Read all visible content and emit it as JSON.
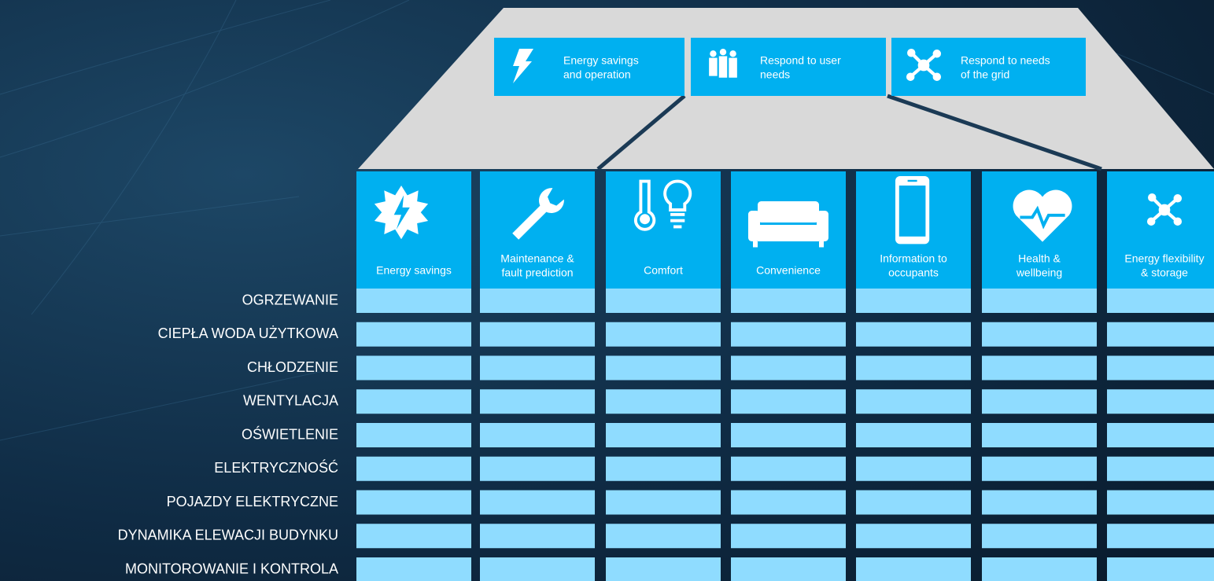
{
  "groups": [
    {
      "label": [
        "Energy savings",
        "and operation"
      ]
    },
    {
      "label": [
        "Respond to user",
        "needs"
      ]
    },
    {
      "label": [
        "Respond to needs",
        "of the grid"
      ]
    }
  ],
  "columns": [
    {
      "label": [
        "Energy savings"
      ]
    },
    {
      "label": [
        "Maintenance &",
        "fault prediction"
      ]
    },
    {
      "label": [
        "Comfort"
      ]
    },
    {
      "label": [
        "Convenience"
      ]
    },
    {
      "label": [
        "Information to",
        "occupants"
      ]
    },
    {
      "label": [
        "Health &",
        "wellbeing"
      ]
    },
    {
      "label": [
        "Energy flexibility",
        "& storage"
      ]
    }
  ],
  "rows": [
    "OGRZEWANIE",
    "CIEPŁA WODA UŻYTKOWA",
    "CHŁODZENIE",
    "WENTYLACJA",
    "OŚWIETLENIE",
    "ELEKTRYCZNOŚĆ",
    "POJAZDY ELEKTRYCZNE",
    "DYNAMIKA ELEWACJI BUDYNKU",
    "MONITOROWANIE I KONTROLA"
  ]
}
